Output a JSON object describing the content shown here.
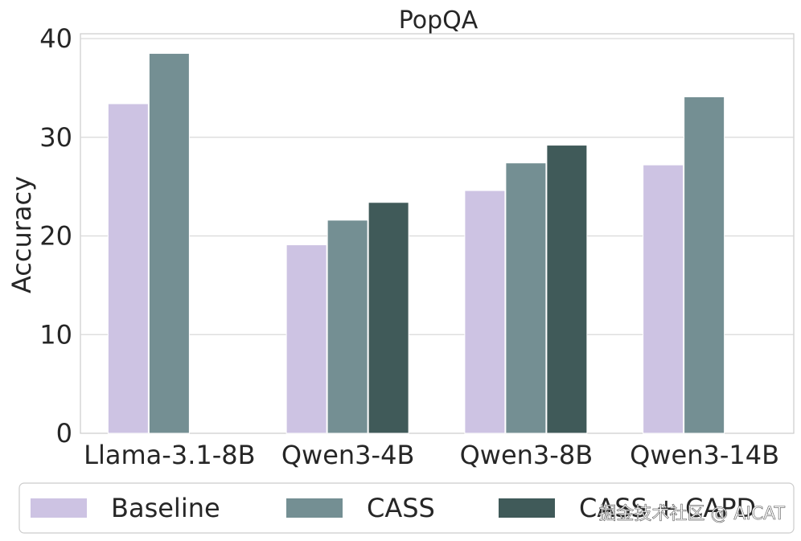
{
  "chart_data": {
    "type": "bar",
    "title": "PopQA",
    "xlabel": "",
    "ylabel": "Accuracy",
    "categories": [
      "Llama-3.1-8B",
      "Qwen3-4B",
      "Qwen3-8B",
      "Qwen3-14B"
    ],
    "ylim": [
      0,
      40
    ],
    "yticks": [
      "0",
      "10",
      "20",
      "30",
      "40"
    ],
    "grid": true,
    "legend_position": "bottom",
    "series": [
      {
        "name": "Baseline",
        "color": "#cdc3e3",
        "values": [
          33.4,
          19.1,
          24.6,
          27.2
        ]
      },
      {
        "name": "CASS",
        "color": "#748f93",
        "values": [
          38.5,
          21.6,
          27.4,
          34.1
        ]
      },
      {
        "name": "CASS + CAPD",
        "color": "#405a59",
        "values": [
          null,
          23.4,
          29.2,
          null
        ]
      }
    ]
  },
  "watermark": "掘金技术社区 @ AICAT"
}
